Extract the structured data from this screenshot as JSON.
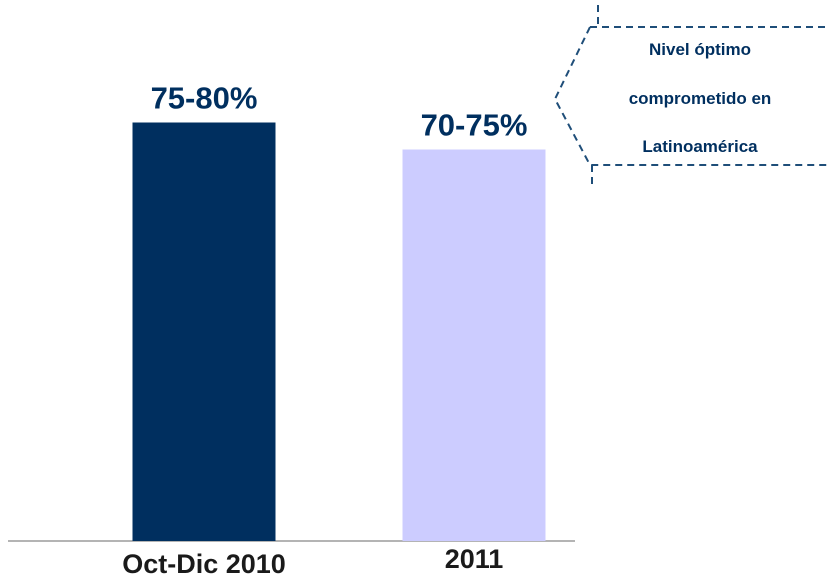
{
  "chart_data": {
    "type": "bar",
    "categories": [
      "Oct-Dic 2010",
      "2011"
    ],
    "values": [
      77.5,
      72.5
    ],
    "value_labels": [
      "75-80%",
      "70-75%"
    ],
    "ranges": [
      [
        75,
        80
      ],
      [
        70,
        75
      ]
    ],
    "bar_colors": [
      "#002f5f",
      "#ccccff"
    ],
    "label_color": "#002f5f",
    "ylim": [
      0,
      100
    ],
    "xlabel": "",
    "ylabel": "",
    "grid": false,
    "legend": "none"
  },
  "callout": {
    "lines": [
      "Nivel óptimo",
      "comprometido en",
      "Latinoamérica"
    ],
    "border_color": "#1f4e79",
    "text_color": "#002f5f"
  }
}
